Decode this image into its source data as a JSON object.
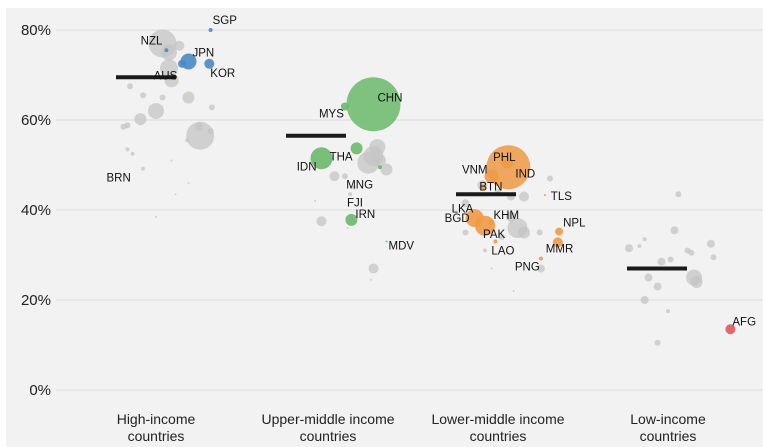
{
  "chart_data": {
    "type": "scatter",
    "title": "",
    "xlabel": "",
    "ylabel": "",
    "ylim": [
      0,
      85
    ],
    "y_ticks": [
      "0%",
      "20%",
      "40%",
      "60%",
      "80%"
    ],
    "y_tick_values": [
      0,
      20,
      40,
      60,
      80
    ],
    "grid": true,
    "categories": [
      {
        "line1": "High-income",
        "line2": "countries"
      },
      {
        "line1": "Upper-middle income",
        "line2": "countries"
      },
      {
        "line1": "Lower-middle income",
        "line2": "countries"
      },
      {
        "line1": "Low-income",
        "line2": "countries"
      }
    ],
    "medians": [
      69.5,
      56.5,
      43.5,
      27
    ],
    "colors": {
      "background": "#f2f2f2",
      "grid": "#dcdcdc",
      "other": "#c4c4c4",
      "high": "#4a89c4",
      "upper": "#6bb86b",
      "lower": "#ef9a45",
      "low": "#e05a5c",
      "median": "#1a1a1a"
    },
    "highlighted": [
      {
        "label": "SGP",
        "group": 0,
        "jitter": 0.42,
        "value": 80,
        "size": 2
      },
      {
        "label": "NZL",
        "group": 0,
        "jitter": 0.08,
        "value": 75.5,
        "size": 2
      },
      {
        "label": "JPN",
        "group": 0,
        "jitter": 0.25,
        "value": 73,
        "size": 8
      },
      {
        "label": "",
        "group": 0,
        "jitter": 0.2,
        "value": 72.5,
        "size": 4
      },
      {
        "label": "KOR",
        "group": 0,
        "jitter": 0.41,
        "value": 72.5,
        "size": 5
      },
      {
        "label": "AUS",
        "group": 0,
        "jitter": 0.12,
        "value": 70.3,
        "size": 0
      },
      {
        "label": "BRN",
        "group": 0,
        "jitter": -0.15,
        "value": 49.5,
        "size": 0
      },
      {
        "label": "CHN",
        "group": 1,
        "jitter": 0.35,
        "value": 63.5,
        "size": 27
      },
      {
        "label": "MYS",
        "group": 1,
        "jitter": 0.13,
        "value": 63,
        "size": 4
      },
      {
        "label": "IDN",
        "group": 1,
        "jitter": -0.05,
        "value": 51.5,
        "size": 11
      },
      {
        "label": "THA",
        "group": 1,
        "jitter": 0.22,
        "value": 53.7,
        "size": 6
      },
      {
        "label": "",
        "group": 1,
        "jitter": 0.4,
        "value": 49.5,
        "size": 2
      },
      {
        "label": "MNG",
        "group": 1,
        "jitter": 0.24,
        "value": 47.5,
        "size": 0
      },
      {
        "label": "FJI",
        "group": 1,
        "jitter": 0.2,
        "value": 43.5,
        "size": 0
      },
      {
        "label": "IRN",
        "group": 1,
        "jitter": 0.18,
        "value": 37.8,
        "size": 6
      },
      {
        "label": "MDV",
        "group": 1,
        "jitter": 0.45,
        "value": 33,
        "size": 1
      },
      {
        "label": "IND",
        "group": 2,
        "jitter": 0.08,
        "value": 49.5,
        "size": 22
      },
      {
        "label": "VNM",
        "group": 2,
        "jitter": -0.05,
        "value": 47.5,
        "size": 7
      },
      {
        "label": "PHL",
        "group": 2,
        "jitter": 0.07,
        "value": 50.5,
        "size": 6
      },
      {
        "label": "BTN",
        "group": 2,
        "jitter": -0.12,
        "value": 45,
        "size": 3
      },
      {
        "label": "TLS",
        "group": 2,
        "jitter": 0.36,
        "value": 43.3,
        "size": 1
      },
      {
        "label": "LKA",
        "group": 2,
        "jitter": -0.18,
        "value": 39,
        "size": 0
      },
      {
        "label": "BGD",
        "group": 2,
        "jitter": -0.18,
        "value": 38.2,
        "size": 9
      },
      {
        "label": "PAK",
        "group": 2,
        "jitter": -0.1,
        "value": 36.5,
        "size": 10
      },
      {
        "label": "KHM",
        "group": 2,
        "jitter": -0.05,
        "value": 37.3,
        "size": 3
      },
      {
        "label": "LAO",
        "group": 2,
        "jitter": -0.02,
        "value": 33,
        "size": 2
      },
      {
        "label": "NPL",
        "group": 2,
        "jitter": 0.47,
        "value": 35.2,
        "size": 4
      },
      {
        "label": "MMR",
        "group": 2,
        "jitter": 0.46,
        "value": 32.8,
        "size": 5
      },
      {
        "label": "PNG",
        "group": 2,
        "jitter": 0.33,
        "value": 29.2,
        "size": 2
      },
      {
        "label": "AFG",
        "group": 3,
        "jitter": 0.48,
        "value": 13.5,
        "size": 5
      }
    ],
    "others": [
      [
        0,
        0.05,
        77,
        14
      ],
      [
        0,
        0.1,
        75,
        8
      ],
      [
        0,
        0.18,
        76.5,
        5
      ],
      [
        0,
        0.1,
        71.5,
        9
      ],
      [
        0,
        0.12,
        68.8,
        7
      ],
      [
        0,
        -0.2,
        67.5,
        3
      ],
      [
        0,
        -0.1,
        65.5,
        3
      ],
      [
        0,
        0.05,
        65,
        3
      ],
      [
        0,
        0.25,
        65,
        6
      ],
      [
        0,
        0.0,
        62,
        8
      ],
      [
        0,
        -0.12,
        60.2,
        6
      ],
      [
        0,
        -0.25,
        58.5,
        3
      ],
      [
        0,
        -0.22,
        58.8,
        3
      ],
      [
        0,
        0.33,
        58.5,
        4
      ],
      [
        0,
        0.34,
        56.5,
        14
      ],
      [
        0,
        0.42,
        57.5,
        3
      ],
      [
        0,
        0.24,
        55.5,
        2
      ],
      [
        0,
        0.43,
        62.8,
        3
      ],
      [
        0,
        -0.22,
        53.5,
        2
      ],
      [
        0,
        -0.18,
        52.5,
        2
      ],
      [
        0,
        0.12,
        51,
        1
      ],
      [
        0,
        0.25,
        46,
        1
      ],
      [
        0,
        -0.1,
        49.2,
        2
      ],
      [
        0,
        0.15,
        43.5,
        1
      ],
      [
        0,
        0.0,
        38.5,
        1
      ],
      [
        1,
        0.38,
        54,
        8
      ],
      [
        1,
        0.35,
        52,
        10
      ],
      [
        1,
        0.4,
        51,
        6
      ],
      [
        1,
        0.31,
        50.5,
        11
      ],
      [
        1,
        0.45,
        49,
        6
      ],
      [
        1,
        0.05,
        47.5,
        5
      ],
      [
        1,
        0.13,
        47.5,
        3
      ],
      [
        1,
        0.17,
        43.5,
        2
      ],
      [
        1,
        -0.05,
        37.5,
        5
      ],
      [
        1,
        0.2,
        45,
        2
      ],
      [
        1,
        0.35,
        27,
        5
      ],
      [
        1,
        -0.1,
        42,
        1
      ],
      [
        1,
        0.33,
        24.5,
        1
      ],
      [
        1,
        0.15,
        36,
        1
      ],
      [
        2,
        -0.25,
        41.5,
        4
      ],
      [
        2,
        0.1,
        43,
        4
      ],
      [
        2,
        0.2,
        43,
        5
      ],
      [
        2,
        -0.12,
        45.5,
        5
      ],
      [
        2,
        0.0,
        44,
        3
      ],
      [
        2,
        0.4,
        47,
        3
      ],
      [
        2,
        0.15,
        36,
        10
      ],
      [
        2,
        0.1,
        38.5,
        5
      ],
      [
        2,
        0.2,
        35,
        6
      ],
      [
        2,
        0.32,
        35,
        3
      ],
      [
        2,
        0.03,
        34,
        3
      ],
      [
        2,
        -0.15,
        38,
        2
      ],
      [
        2,
        -0.25,
        35,
        3
      ],
      [
        2,
        0.33,
        27,
        4
      ],
      [
        2,
        -0.1,
        31,
        2
      ],
      [
        2,
        -0.05,
        27,
        1
      ],
      [
        2,
        0.12,
        22,
        1
      ],
      [
        3,
        0.08,
        43.5,
        3
      ],
      [
        3,
        -0.18,
        33.5,
        2
      ],
      [
        3,
        0.05,
        35.5,
        4
      ],
      [
        3,
        -0.3,
        31.5,
        4
      ],
      [
        3,
        -0.22,
        32,
        2
      ],
      [
        3,
        -0.05,
        28.5,
        4
      ],
      [
        3,
        0.02,
        29,
        3
      ],
      [
        3,
        0.15,
        31,
        3
      ],
      [
        3,
        0.33,
        32.5,
        4
      ],
      [
        3,
        0.35,
        29.5,
        3
      ],
      [
        3,
        0.18,
        30.5,
        3
      ],
      [
        3,
        0.2,
        25,
        8
      ],
      [
        3,
        0.22,
        24,
        6
      ],
      [
        3,
        -0.15,
        25,
        4
      ],
      [
        3,
        -0.08,
        23,
        4
      ],
      [
        3,
        -0.18,
        20,
        4
      ],
      [
        3,
        0.0,
        17.5,
        2
      ],
      [
        3,
        -0.08,
        10.5,
        3
      ]
    ]
  }
}
